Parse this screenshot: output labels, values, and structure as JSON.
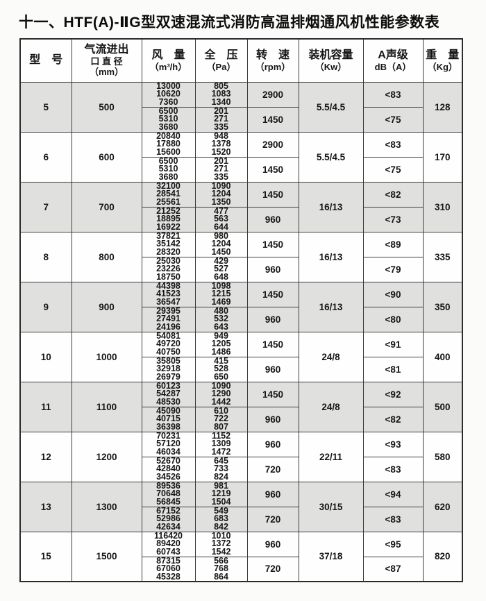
{
  "title": "十一、HTF(A)-ⅡG型双速混流式消防高温排烟通风机性能参数表",
  "colors": {
    "shaded_row": "#e0e0de",
    "row": "#fefefe",
    "border": "#3c3c3c",
    "text": "#151515",
    "page_background": "#fbfbf9"
  },
  "table": {
    "headers": [
      {
        "key": "model",
        "lines": [
          "型　号"
        ]
      },
      {
        "key": "diameter",
        "lines": [
          "气流进出",
          "口 直 径",
          "（mm）"
        ]
      },
      {
        "key": "airflow",
        "lines": [
          "风　量",
          "（m³/h）"
        ]
      },
      {
        "key": "pressure",
        "lines": [
          "全　压",
          "（Pa）"
        ]
      },
      {
        "key": "rpm",
        "lines": [
          "转　速",
          "（rpm）"
        ]
      },
      {
        "key": "capacity",
        "lines": [
          "装机容量",
          "（Kw）"
        ]
      },
      {
        "key": "noise",
        "lines": [
          "A声级",
          "dB（A）"
        ]
      },
      {
        "key": "weight",
        "lines": [
          "重　量",
          "（Kg）"
        ]
      }
    ],
    "rows": [
      {
        "model": "5",
        "diameter": "500",
        "capacity": "5.5/4.5",
        "weight": "128",
        "shaded": true,
        "high": {
          "airflow": [
            "13000",
            "10620",
            "7360"
          ],
          "pressure": [
            "805",
            "1083",
            "1340"
          ],
          "rpm": "2900",
          "noise": "<83"
        },
        "low": {
          "airflow": [
            "6500",
            "5310",
            "3680"
          ],
          "pressure": [
            "201",
            "271",
            "335"
          ],
          "rpm": "1450",
          "noise": "<75"
        }
      },
      {
        "model": "6",
        "diameter": "600",
        "capacity": "5.5/4.5",
        "weight": "170",
        "shaded": false,
        "high": {
          "airflow": [
            "20840",
            "17880",
            "15600"
          ],
          "pressure": [
            "948",
            "1378",
            "1520"
          ],
          "rpm": "2900",
          "noise": "<83"
        },
        "low": {
          "airflow": [
            "6500",
            "5310",
            "3680"
          ],
          "pressure": [
            "201",
            "271",
            "335"
          ],
          "rpm": "1450",
          "noise": "<75"
        }
      },
      {
        "model": "7",
        "diameter": "700",
        "capacity": "16/13",
        "weight": "310",
        "shaded": true,
        "high": {
          "airflow": [
            "32100",
            "28541",
            "25561"
          ],
          "pressure": [
            "1090",
            "1204",
            "1350"
          ],
          "rpm": "1450",
          "noise": "<82"
        },
        "low": {
          "airflow": [
            "21252",
            "18895",
            "16922"
          ],
          "pressure": [
            "477",
            "563",
            "644"
          ],
          "rpm": "960",
          "noise": "<73"
        }
      },
      {
        "model": "8",
        "diameter": "800",
        "capacity": "16/13",
        "weight": "335",
        "shaded": false,
        "high": {
          "airflow": [
            "37821",
            "35142",
            "28320"
          ],
          "pressure": [
            "980",
            "1204",
            "1450"
          ],
          "rpm": "1450",
          "noise": "<89"
        },
        "low": {
          "airflow": [
            "25030",
            "23226",
            "18750"
          ],
          "pressure": [
            "429",
            "527",
            "648"
          ],
          "rpm": "960",
          "noise": "<79"
        }
      },
      {
        "model": "9",
        "diameter": "900",
        "capacity": "16/13",
        "weight": "350",
        "shaded": true,
        "high": {
          "airflow": [
            "44398",
            "41523",
            "36547"
          ],
          "pressure": [
            "1098",
            "1215",
            "1469"
          ],
          "rpm": "1450",
          "noise": "<90"
        },
        "low": {
          "airflow": [
            "29395",
            "27491",
            "24196"
          ],
          "pressure": [
            "480",
            "532",
            "643"
          ],
          "rpm": "960",
          "noise": "<80"
        }
      },
      {
        "model": "10",
        "diameter": "1000",
        "capacity": "24/8",
        "weight": "400",
        "shaded": false,
        "high": {
          "airflow": [
            "54081",
            "49720",
            "40750"
          ],
          "pressure": [
            "949",
            "1205",
            "1486"
          ],
          "rpm": "1450",
          "noise": "<91"
        },
        "low": {
          "airflow": [
            "35805",
            "32918",
            "26979"
          ],
          "pressure": [
            "415",
            "528",
            "650"
          ],
          "rpm": "960",
          "noise": "<81"
        }
      },
      {
        "model": "11",
        "diameter": "1100",
        "capacity": "24/8",
        "weight": "500",
        "shaded": true,
        "high": {
          "airflow": [
            "60123",
            "54287",
            "48530"
          ],
          "pressure": [
            "1090",
            "1290",
            "1442"
          ],
          "rpm": "1450",
          "noise": "<92"
        },
        "low": {
          "airflow": [
            "45090",
            "40715",
            "36398"
          ],
          "pressure": [
            "610",
            "722",
            "807"
          ],
          "rpm": "960",
          "noise": "<82"
        }
      },
      {
        "model": "12",
        "diameter": "1200",
        "capacity": "22/11",
        "weight": "580",
        "shaded": false,
        "high": {
          "airflow": [
            "70231",
            "57120",
            "46034"
          ],
          "pressure": [
            "1152",
            "1309",
            "1472"
          ],
          "rpm": "960",
          "noise": "<93"
        },
        "low": {
          "airflow": [
            "52670",
            "42840",
            "34526"
          ],
          "pressure": [
            "645",
            "733",
            "824"
          ],
          "rpm": "720",
          "noise": "<83"
        }
      },
      {
        "model": "13",
        "diameter": "1300",
        "capacity": "30/15",
        "weight": "620",
        "shaded": true,
        "high": {
          "airflow": [
            "89536",
            "70648",
            "56845"
          ],
          "pressure": [
            "981",
            "1219",
            "1504"
          ],
          "rpm": "960",
          "noise": "<94"
        },
        "low": {
          "airflow": [
            "67152",
            "52986",
            "42634"
          ],
          "pressure": [
            "549",
            "683",
            "842"
          ],
          "rpm": "720",
          "noise": "<83"
        }
      },
      {
        "model": "15",
        "diameter": "1500",
        "capacity": "37/18",
        "weight": "820",
        "shaded": false,
        "high": {
          "airflow": [
            "116420",
            "89420",
            "60743"
          ],
          "pressure": [
            "1010",
            "1372",
            "1542"
          ],
          "rpm": "960",
          "noise": "<95"
        },
        "low": {
          "airflow": [
            "87315",
            "67060",
            "45328"
          ],
          "pressure": [
            "566",
            "768",
            "864"
          ],
          "rpm": "720",
          "noise": "<87"
        }
      }
    ]
  }
}
